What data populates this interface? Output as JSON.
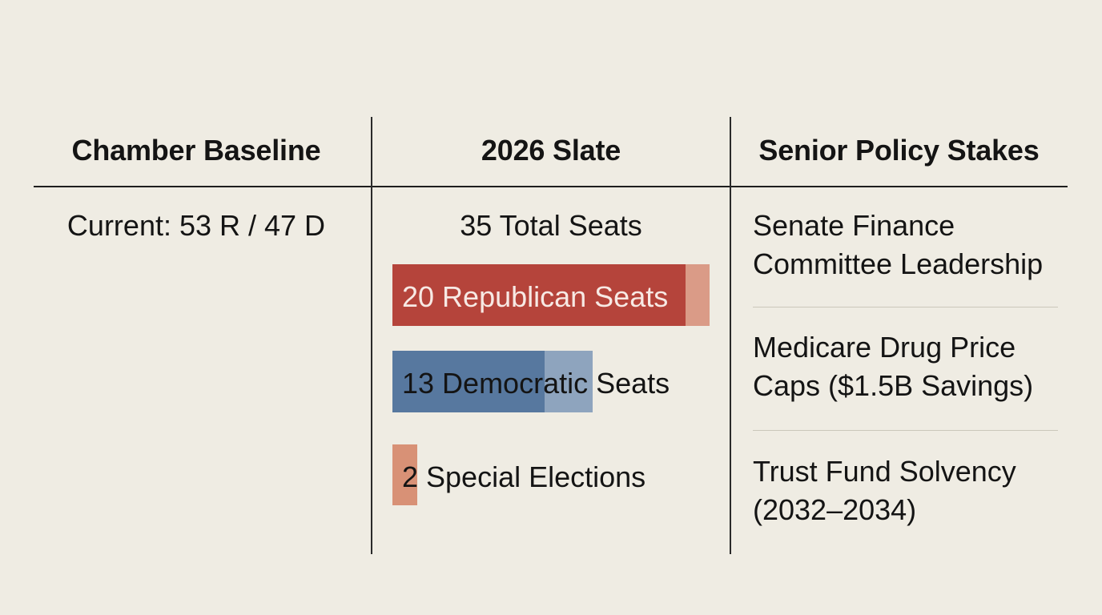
{
  "headers": {
    "baseline": "Chamber Baseline",
    "slate": "2026 Slate",
    "stakes": "Senior Policy Stakes"
  },
  "baseline": {
    "current": "Current: 53 R / 47 D"
  },
  "slate": {
    "total": "35 Total Seats",
    "bars": [
      {
        "label": "20 Republican Seats",
        "value": 20,
        "color": "#b5443b",
        "tint": "#da9b87"
      },
      {
        "label": "13 Democratic Seats",
        "value": 13,
        "color": "#57789f",
        "tint": "#8ea4be"
      },
      {
        "label": "2 Special Elections",
        "value": 2,
        "color": "#d89176",
        "tint": "#d89176"
      }
    ]
  },
  "stakes": {
    "items": [
      {
        "line1": "Senate Finance",
        "line2": "Committee Leadership"
      },
      {
        "line1": "Medicare Drug Price",
        "line2": "Caps ($1.5B Savings)"
      },
      {
        "line1": "Trust Fund Solvency",
        "line2": "(2032–2034)"
      }
    ]
  }
}
